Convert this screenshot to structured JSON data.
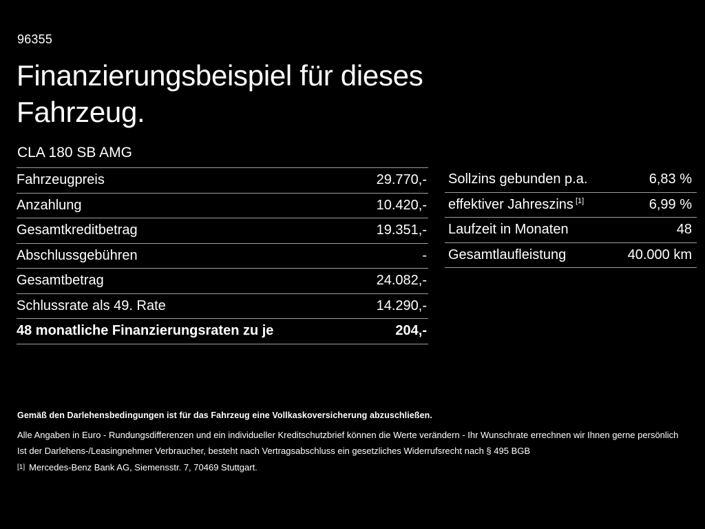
{
  "page": {
    "document_number": "96355",
    "title_line1": "Finanzierungsbeispiel für dieses",
    "title_line2": "Fahrzeug.",
    "vehicle_model": "CLA 180 SB AMG"
  },
  "financing_table": {
    "rows": [
      {
        "label": "Fahrzeugpreis",
        "value": "29.770,-"
      },
      {
        "label": "Anzahlung",
        "value": "10.420,-"
      },
      {
        "label": "Gesamtkreditbetrag",
        "value": "19.351,-"
      },
      {
        "label": "Abschlussgebühren",
        "value": "-"
      },
      {
        "label": "Gesamtbetrag",
        "value": "24.082,-"
      },
      {
        "label": "Schlussrate als 49. Rate",
        "value": "14.290,-"
      },
      {
        "label": "48 monatliche Finanzierungsraten zu je",
        "value": "204,-"
      }
    ]
  },
  "conditions_table": {
    "rows": [
      {
        "label": "Sollzins gebunden p.a.",
        "value": "6,83 %"
      },
      {
        "label": "effektiver Jahreszins",
        "footnote_marker": "[1]",
        "value": "6,99 %"
      },
      {
        "label": "Laufzeit in Monaten",
        "value": "48"
      },
      {
        "label": "Gesamtlaufleistung",
        "value": "40.000 km"
      }
    ]
  },
  "footer": {
    "line1": "Gemäß den Darlehensbedingungen ist für das Fahrzeug eine Vollkaskoversicherung abzuschließen.",
    "line2": "Alle Angaben in Euro - Rundungsdifferenzen und ein individueller Kreditschutzbrief können die Werte verändern - Ihr Wunschrate errechnen wir Ihnen gerne persönlich",
    "line3": "Ist der Darlehens-/Leasingnehmer Verbraucher, besteht nach Vertragsabschluss ein gesetzliches Widerrufsrecht nach § 495 BGB",
    "footnote_marker": "[1]",
    "footnote_text": "Mercedes-Benz Bank AG, Siemensstr. 7, 70469 Stuttgart."
  },
  "colors": {
    "background": "#000000",
    "text": "#ffffff",
    "divider": "#a0a0a0"
  }
}
